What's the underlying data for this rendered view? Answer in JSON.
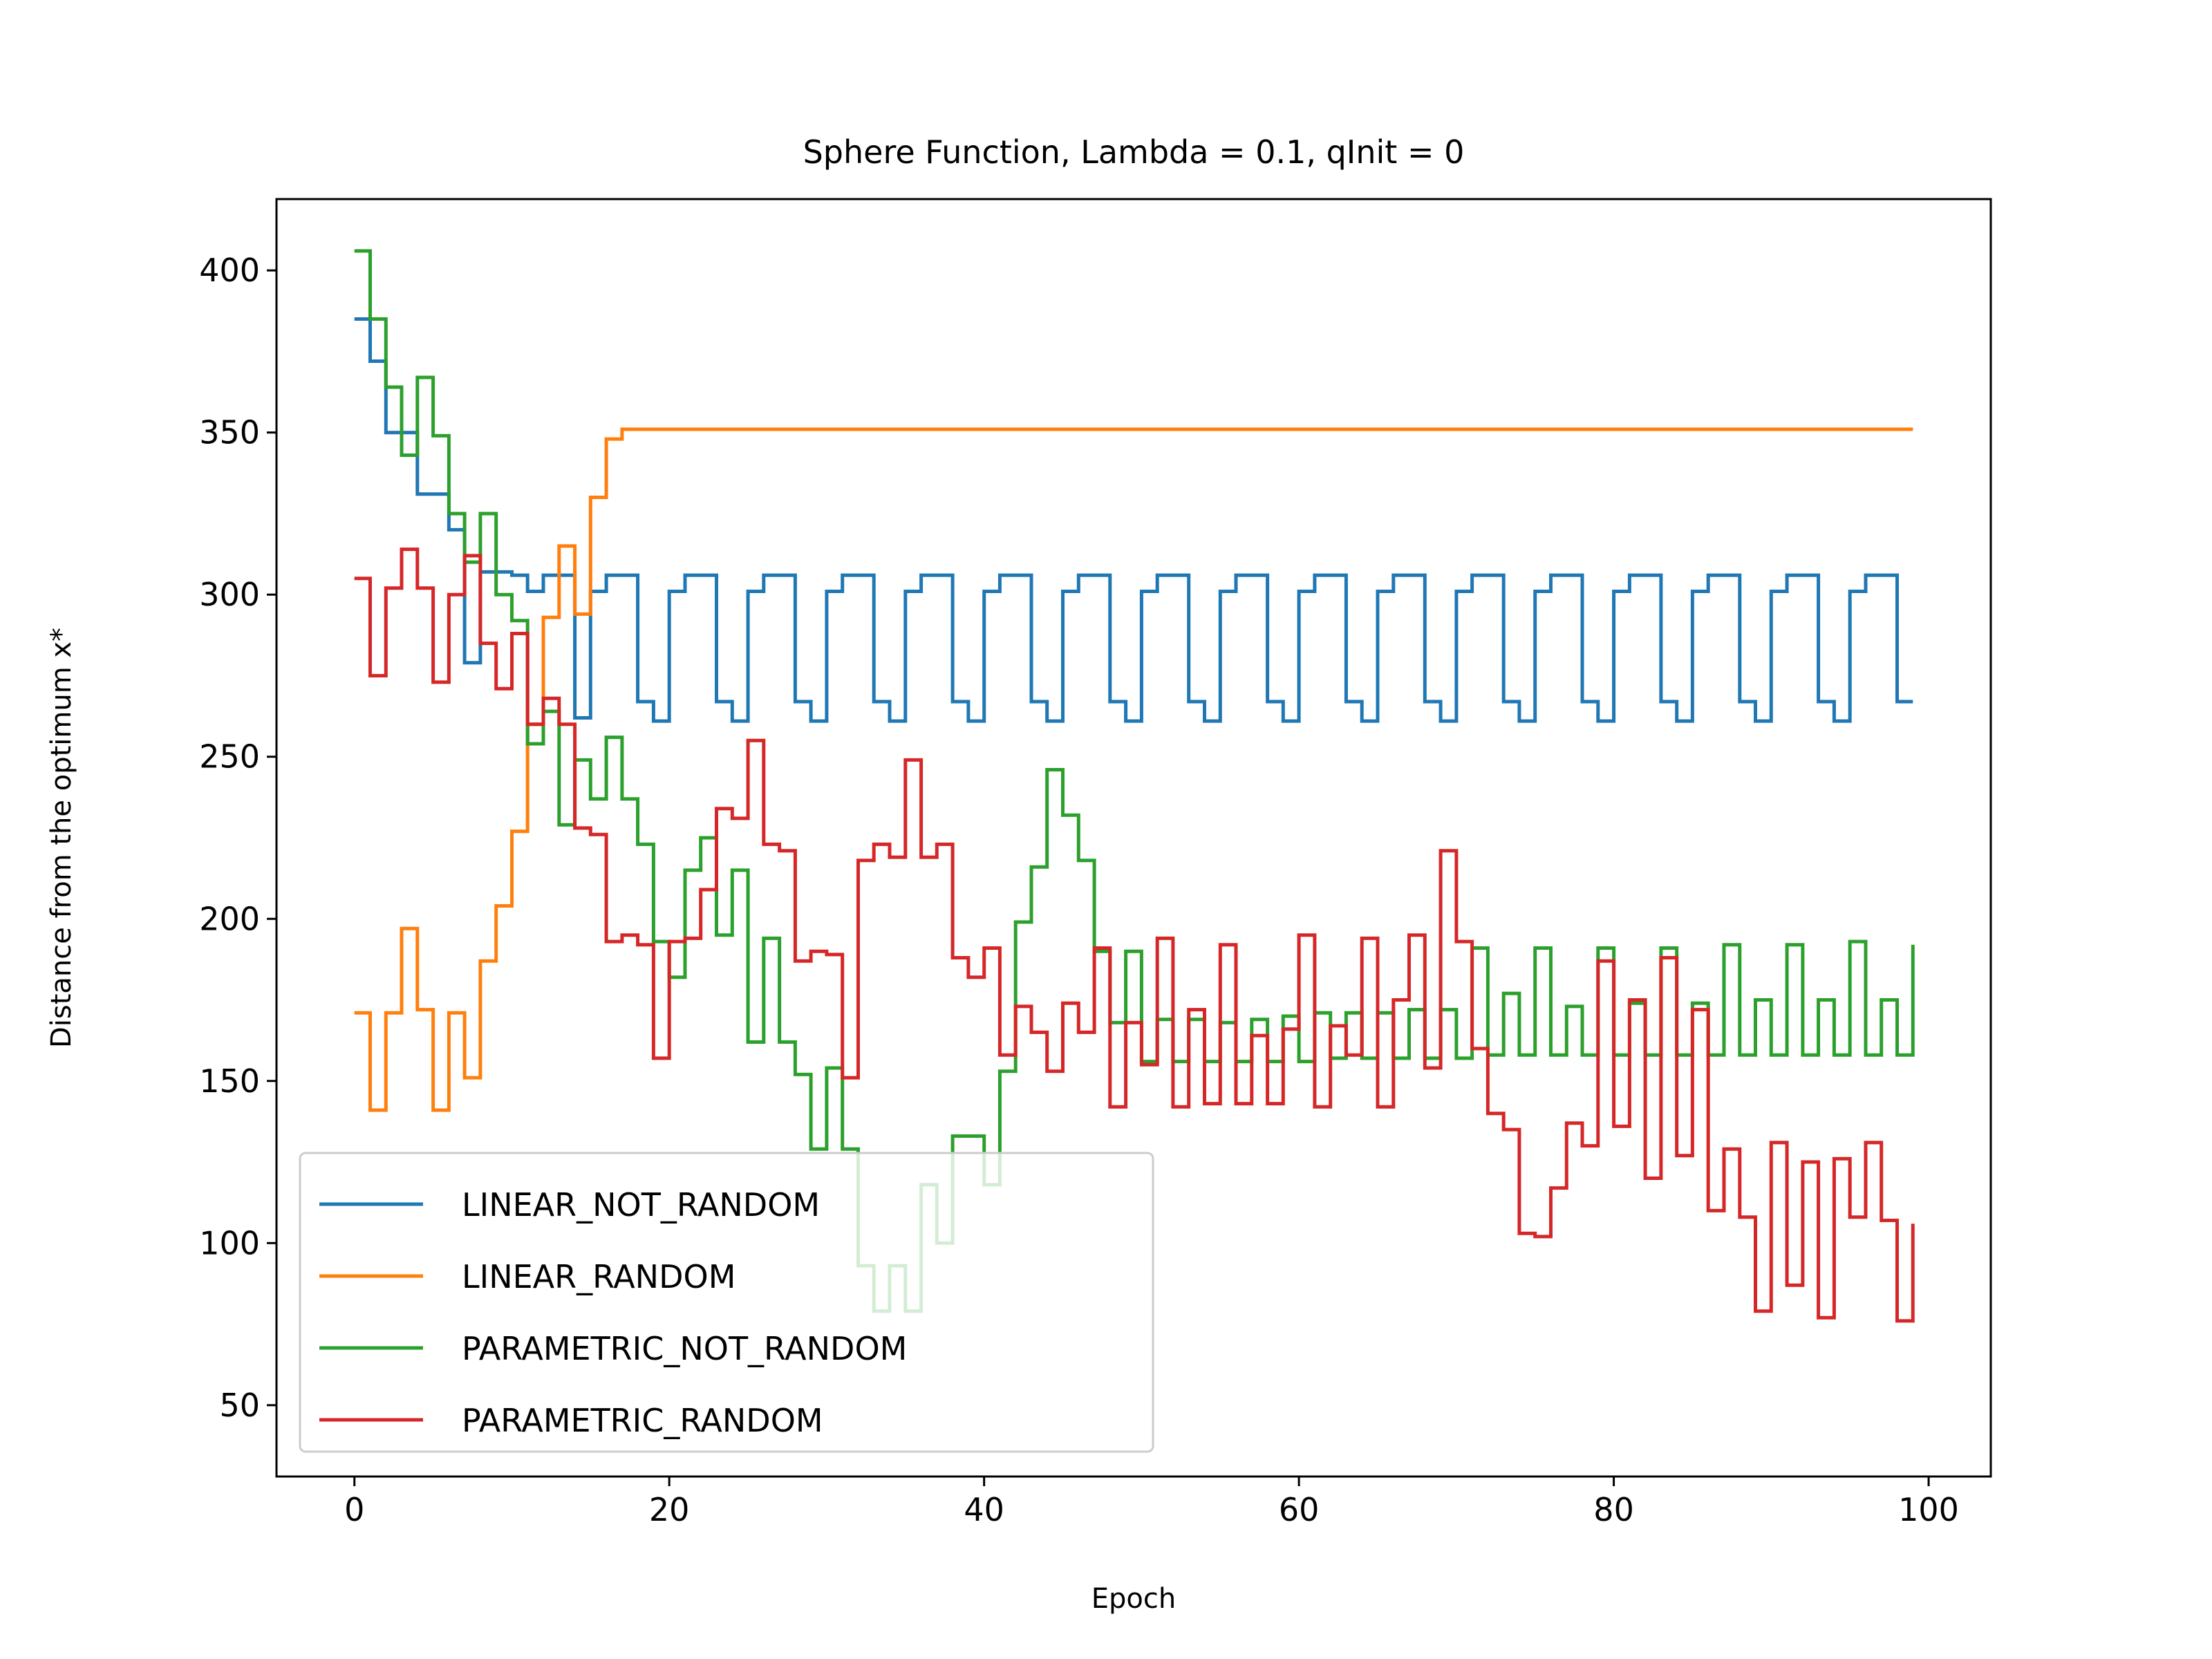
{
  "chart_data": {
    "type": "line",
    "title": "Sphere Function, Lambda = 0.1, qInit = 0",
    "xlabel": "Epoch",
    "ylabel": "Distance from the optimum x*",
    "xlim": [
      -4.95,
      103.95
    ],
    "ylim": [
      28,
      422
    ],
    "xticks": [
      0,
      20,
      40,
      60,
      80,
      100
    ],
    "yticks": [
      50,
      100,
      150,
      200,
      250,
      300,
      350,
      400
    ],
    "grid": false,
    "step": "post",
    "legend_placement": "lower-left",
    "series": [
      {
        "name": "LINEAR_NOT_RANDOM",
        "color": "#1f77b4",
        "values": [
          385,
          372,
          350,
          350,
          331,
          331,
          320,
          279,
          307,
          307,
          306,
          301,
          306,
          306,
          262,
          301,
          306,
          306,
          267,
          261,
          301,
          306,
          306,
          267,
          261,
          301,
          306,
          306,
          267,
          261,
          301,
          306,
          306,
          267,
          261,
          301,
          306,
          306,
          267,
          261,
          301,
          306,
          306,
          267,
          261,
          301,
          306,
          306,
          267,
          261,
          301,
          306,
          306,
          267,
          261,
          301,
          306,
          306,
          267,
          261,
          301,
          306,
          306,
          267,
          261,
          301,
          306,
          306,
          267,
          261,
          301,
          306,
          306,
          267,
          261,
          301,
          306,
          306,
          267,
          261,
          301,
          306,
          306,
          267,
          261,
          301,
          306,
          306,
          267,
          261,
          301,
          306,
          306,
          267,
          261,
          301,
          306,
          306,
          267,
          267
        ]
      },
      {
        "name": "LINEAR_RANDOM",
        "color": "#ff7f0e",
        "values": [
          171,
          141,
          171,
          197,
          172,
          141,
          171,
          151,
          187,
          204,
          227,
          260,
          293,
          315,
          294,
          330,
          348,
          351,
          351,
          351,
          351,
          351,
          351,
          351,
          351,
          351,
          351,
          351,
          351,
          351,
          351,
          351,
          351,
          351,
          351,
          351,
          351,
          351,
          351,
          351,
          351,
          351,
          351,
          351,
          351,
          351,
          351,
          351,
          351,
          351,
          351,
          351,
          351,
          351,
          351,
          351,
          351,
          351,
          351,
          351,
          351,
          351,
          351,
          351,
          351,
          351,
          351,
          351,
          351,
          351,
          351,
          351,
          351,
          351,
          351,
          351,
          351,
          351,
          351,
          351,
          351,
          351,
          351,
          351,
          351,
          351,
          351,
          351,
          351,
          351,
          351,
          351,
          351,
          351,
          351,
          351,
          351,
          351,
          351,
          351
        ]
      },
      {
        "name": "PARAMETRIC_NOT_RANDOM",
        "color": "#2ca02c",
        "values": [
          406,
          385,
          364,
          343,
          367,
          349,
          325,
          310,
          325,
          300,
          292,
          254,
          264,
          229,
          249,
          237,
          256,
          237,
          223,
          193,
          182,
          215,
          225,
          195,
          215,
          162,
          194,
          162,
          152,
          129,
          154,
          129,
          93,
          79,
          93,
          79,
          118,
          100,
          133,
          133,
          118,
          153,
          199,
          216,
          246,
          232,
          218,
          190,
          168,
          190,
          156,
          169,
          156,
          169,
          156,
          168,
          156,
          169,
          156,
          170,
          156,
          171,
          157,
          171,
          157,
          171,
          157,
          172,
          157,
          172,
          157,
          191,
          158,
          177,
          158,
          191,
          158,
          173,
          158,
          191,
          158,
          174,
          158,
          191,
          158,
          174,
          158,
          192,
          158,
          175,
          158,
          192,
          158,
          175,
          158,
          193,
          158,
          175,
          158,
          192
        ]
      },
      {
        "name": "PARAMETRIC_RANDOM",
        "color": "#d62728",
        "values": [
          305,
          275,
          302,
          314,
          302,
          273,
          300,
          312,
          285,
          271,
          288,
          260,
          268,
          260,
          228,
          226,
          193,
          195,
          192,
          157,
          193,
          194,
          209,
          234,
          231,
          255,
          223,
          221,
          187,
          190,
          189,
          151,
          218,
          223,
          219,
          249,
          219,
          223,
          188,
          182,
          191,
          158,
          173,
          165,
          153,
          174,
          165,
          191,
          142,
          168,
          155,
          194,
          142,
          172,
          143,
          192,
          143,
          164,
          143,
          166,
          195,
          142,
          167,
          158,
          194,
          142,
          175,
          195,
          154,
          221,
          193,
          160,
          140,
          135,
          103,
          102,
          117,
          137,
          130,
          187,
          136,
          175,
          120,
          188,
          127,
          172,
          110,
          129,
          108,
          79,
          131,
          87,
          125,
          77,
          126,
          108,
          131,
          107,
          76,
          106
        ]
      }
    ]
  }
}
